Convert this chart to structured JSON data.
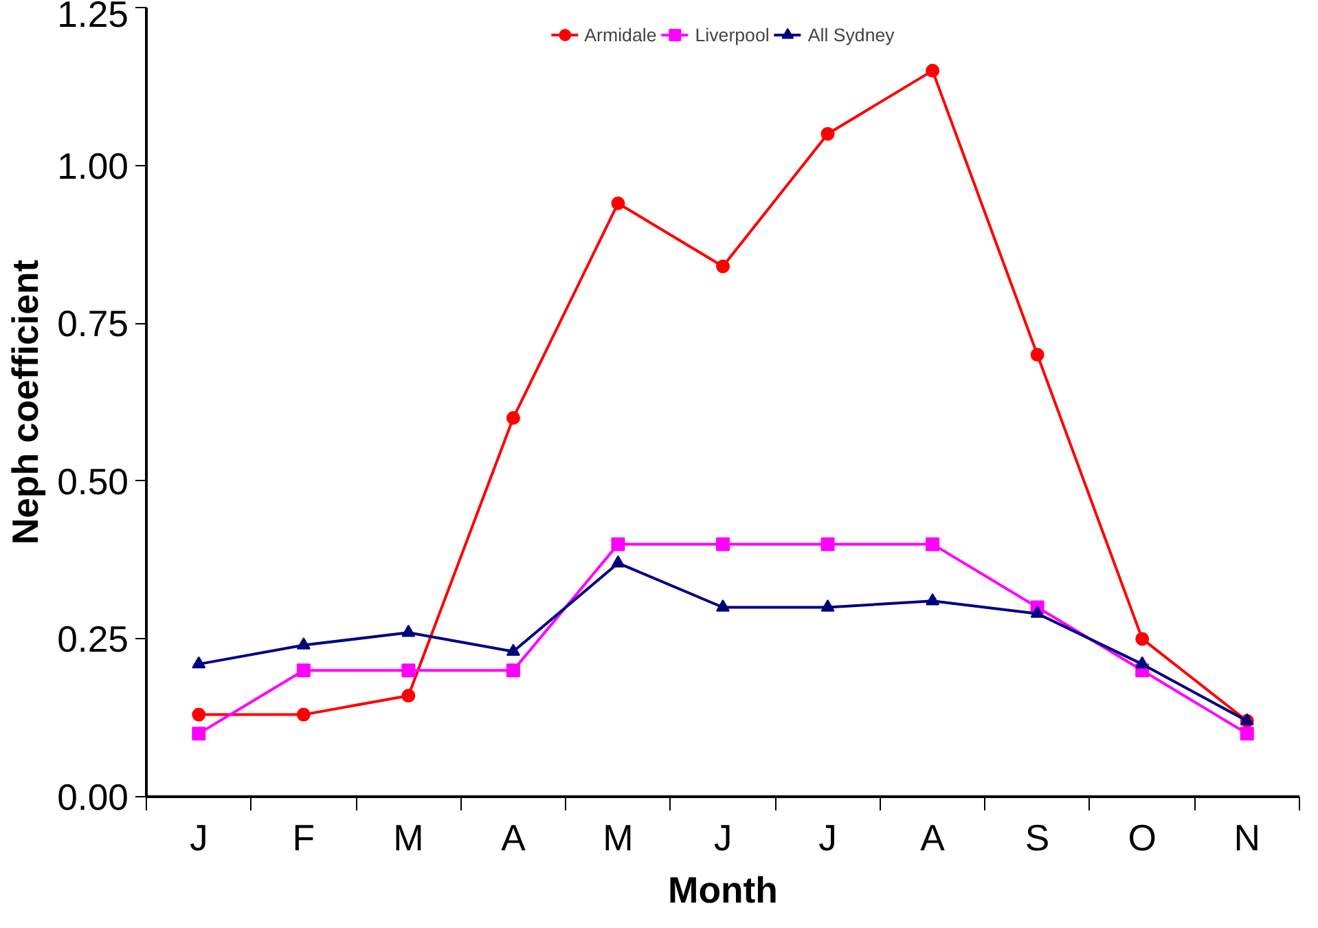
{
  "chart_data": {
    "type": "line",
    "xlabel": "Month",
    "ylabel": "Neph coefficient",
    "categories": [
      "J",
      "F",
      "M",
      "A",
      "M",
      "J",
      "J",
      "A",
      "S",
      "O",
      "N"
    ],
    "ylim": [
      0,
      1.25
    ],
    "yticks": [
      {
        "value": 0,
        "label": "0.00"
      },
      {
        "value": 0.25,
        "label": "0.25"
      },
      {
        "value": 0.5,
        "label": "0.50"
      },
      {
        "value": 0.75,
        "label": "0.75"
      },
      {
        "value": 1,
        "label": "1.00"
      },
      {
        "value": 1.25,
        "label": "1.25"
      }
    ],
    "legend": "top",
    "grid": false,
    "series": [
      {
        "name": "Armidale",
        "color": "#ff0000",
        "marker": "circle",
        "values": [
          0.13,
          0.13,
          0.16,
          0.6,
          0.94,
          0.84,
          1.05,
          1.15,
          0.7,
          0.25,
          0.12
        ]
      },
      {
        "name": "Liverpool",
        "color": "#ff00ff",
        "marker": "square",
        "values": [
          0.1,
          0.2,
          0.2,
          0.2,
          0.4,
          0.4,
          0.4,
          0.4,
          0.3,
          0.2,
          0.1
        ]
      },
      {
        "name": "All Sydney",
        "color": "#000080",
        "marker": "triangle",
        "values": [
          0.21,
          0.24,
          0.26,
          0.23,
          0.37,
          0.3,
          0.3,
          0.31,
          0.29,
          0.21,
          0.12
        ]
      }
    ]
  }
}
